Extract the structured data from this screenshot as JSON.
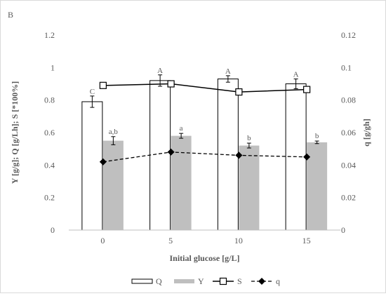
{
  "chart_data": {
    "type": "bar",
    "panel_label": "B",
    "xlabel": "Initial glucose [g/L]",
    "ylabel": "Y [g/g]; Q [g/Lh]; S [*100%]",
    "y2label": "q [g/gh]",
    "categories": [
      "0",
      "5",
      "10",
      "15"
    ],
    "ylim": [
      0,
      1.2
    ],
    "y2lim": [
      0,
      0.12
    ],
    "yticks": [
      "0",
      "0.2",
      "0.4",
      "0.6",
      "0.8",
      "1",
      "1.2"
    ],
    "y2ticks": [
      "0",
      "0.02",
      "0.04",
      "0.06",
      "0.08",
      "0.1",
      "0.12"
    ],
    "series": [
      {
        "name": "Q",
        "type": "bar",
        "style": "outline",
        "axis": "left",
        "values": [
          0.79,
          0.92,
          0.93,
          0.9
        ],
        "errors": [
          0.035,
          0.035,
          0.02,
          0.03
        ],
        "letters": [
          "C",
          "A",
          "A",
          "A"
        ]
      },
      {
        "name": "Y",
        "type": "bar",
        "style": "filled",
        "color": "#bfbfbf",
        "axis": "left",
        "values": [
          0.55,
          0.58,
          0.52,
          0.54
        ],
        "errors": [
          0.025,
          0.015,
          0.015,
          0.008
        ],
        "letters": [
          "a,b",
          "a",
          "b",
          "b"
        ]
      },
      {
        "name": "S",
        "type": "line",
        "marker": "square",
        "axis": "left",
        "values": [
          0.89,
          0.9,
          0.85,
          0.865
        ]
      },
      {
        "name": "q",
        "type": "line",
        "marker": "diamond",
        "dashed": true,
        "axis": "right",
        "values": [
          0.042,
          0.048,
          0.046,
          0.045
        ]
      }
    ],
    "legend_position": "bottom",
    "grid": false
  }
}
